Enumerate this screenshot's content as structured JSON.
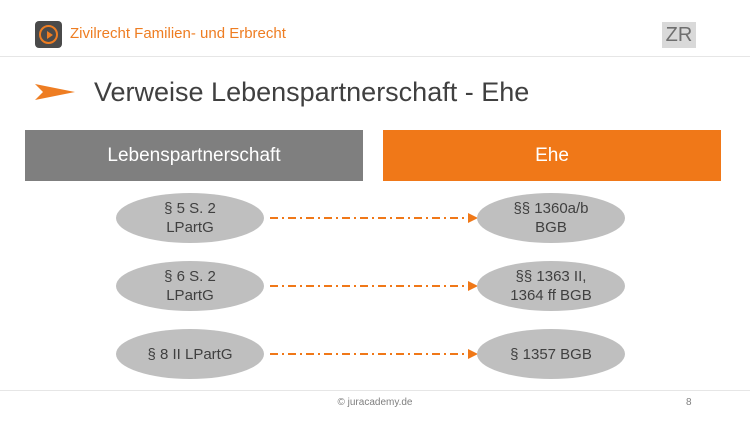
{
  "header": {
    "course_title": "Zivilrecht Familien- und Erbrecht",
    "badge": "ZR",
    "logo_icon": "play-icon"
  },
  "slide": {
    "title": "Verweise Lebenspartnerschaft - Ehe",
    "bullet_icon": "arrow-right-icon"
  },
  "columns": {
    "left": "Lebenspartnerschaft",
    "right": "Ehe"
  },
  "rows": [
    {
      "left": "§ 5 S. 2\nLPartG",
      "right": "§§ 1360a/b\nBGB"
    },
    {
      "left": "§ 6 S. 2\nLPartG",
      "right": "§§ 1363 II,\n1364 ff BGB"
    },
    {
      "left": "§ 8 II LPartG",
      "right": "§ 1357 BGB"
    }
  ],
  "footer": {
    "copyright": "© juracademy.de",
    "page_number": "8"
  },
  "colors": {
    "accent": "#f07818",
    "header_left": "#7f7f7f",
    "ellipse": "#bfbfbf",
    "title_text": "#404040"
  }
}
